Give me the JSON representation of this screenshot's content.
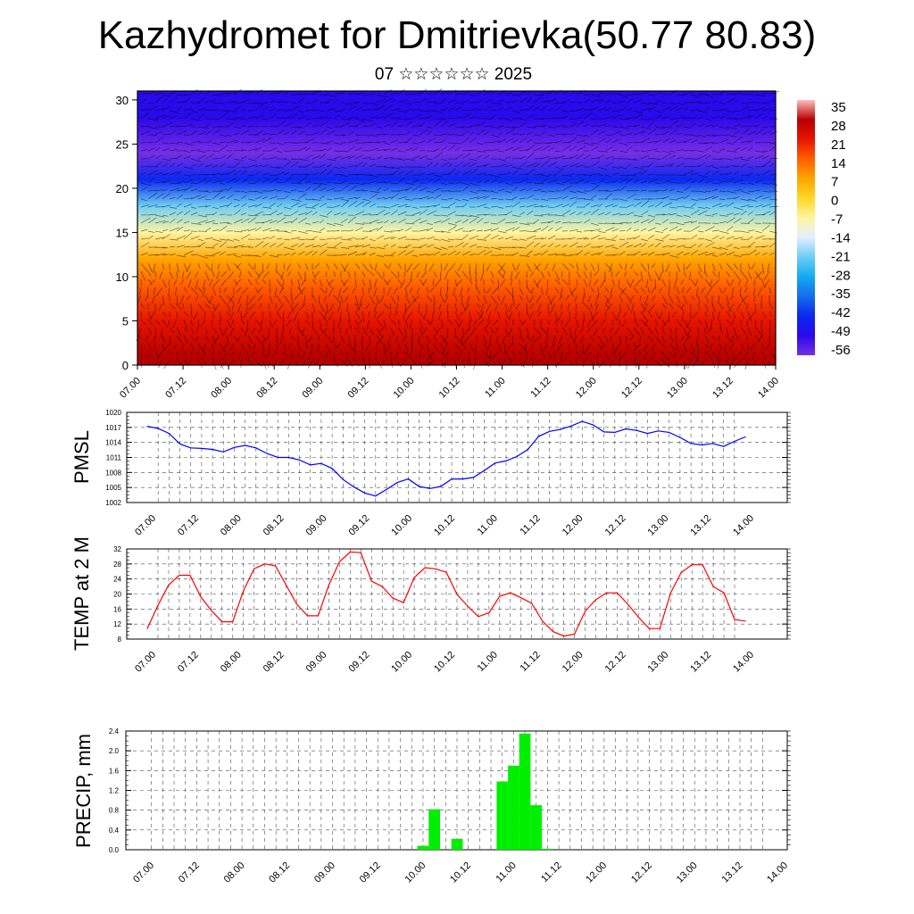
{
  "header": {
    "title": "Kazhydromet for Dmitrievka(50.77 80.83)",
    "subtitle": "07 ☆☆☆☆☆☆ 2025"
  },
  "colors": {
    "pmsl_line": "#0000ff",
    "temp_line": "#ff0000",
    "precip_bar": "#00ee00",
    "colorbar_top": "#ffbbbb",
    "colorbar_bottom": "#7733ee"
  },
  "chart_data": [
    {
      "type": "heatmap",
      "name": "upper-air temperature and wind cross-section",
      "title": "",
      "xlabel": "",
      "ylabel": "",
      "x_tick_labels": [
        "07.00",
        "07.12",
        "08.00",
        "08.12",
        "09.00",
        "09.12",
        "10.00",
        "10.12",
        "11.00",
        "11.12",
        "12.00",
        "12.12",
        "13.00",
        "13.12",
        "14.00"
      ],
      "y_ticks": [
        0,
        5,
        10,
        15,
        20,
        25,
        30
      ],
      "ylim": [
        0,
        31
      ],
      "colorbar_labels": [
        "35",
        "28",
        "21",
        "14",
        "7",
        "0",
        "-7",
        "-14",
        "-21",
        "-28",
        "-35",
        "-42",
        "-49",
        "-56"
      ],
      "layers": [
        {
          "level": 1,
          "value": 28
        },
        {
          "level": 5,
          "value": 21
        },
        {
          "level": 9,
          "value": 14
        },
        {
          "level": 12,
          "value": 7
        },
        {
          "level": 15,
          "value": -7
        },
        {
          "level": 18,
          "value": -21
        },
        {
          "level": 21,
          "value": -42
        },
        {
          "level": 24,
          "value": -56
        },
        {
          "level": 28,
          "value": -49
        },
        {
          "level": 31,
          "value": -49
        }
      ],
      "overlay": "wind barbs"
    },
    {
      "type": "line",
      "name": "pmsl",
      "ylabel": "PMSL",
      "y_ticks": [
        1002,
        1005,
        1008,
        1011,
        1014,
        1017,
        1020
      ],
      "ylim": [
        1002,
        1020
      ],
      "x_tick_labels": [
        "07.00",
        "07.12",
        "08.00",
        "08.12",
        "09.00",
        "09.12",
        "10.00",
        "10.12",
        "11.00",
        "11.12",
        "12.00",
        "12.12",
        "13.00",
        "13.12",
        "14.00"
      ],
      "series": [
        {
          "values": [
            1017.2,
            1016.8,
            1015.8,
            1013.7,
            1012.9,
            1012.8,
            1012.6,
            1012.1,
            1013.0,
            1013.4,
            1012.9,
            1011.8,
            1011.0,
            1011.0,
            1010.5,
            1009.5,
            1009.8,
            1008.8,
            1006.6,
            1005.1,
            1003.9,
            1003.3,
            1004.6,
            1006.0,
            1006.7,
            1005.2,
            1004.8,
            1005.2,
            1006.7,
            1006.7,
            1007.0,
            1008.4,
            1009.9,
            1010.3,
            1011.2,
            1012.6,
            1015.2,
            1016.2,
            1016.6,
            1017.3,
            1018.2,
            1017.5,
            1016.1,
            1016.0,
            1016.7,
            1016.4,
            1015.8,
            1016.3,
            1016.0,
            1015.0,
            1013.8,
            1013.5,
            1013.8,
            1013.2,
            1014.2,
            1015.1
          ]
        }
      ]
    },
    {
      "type": "line",
      "name": "temperature",
      "ylabel": "TEMP at 2 M",
      "y_ticks": [
        8,
        12,
        16,
        20,
        24,
        28,
        32
      ],
      "ylim": [
        8,
        32
      ],
      "x_tick_labels": [
        "07.00",
        "07.12",
        "08.00",
        "08.12",
        "09.00",
        "09.12",
        "10.00",
        "10.12",
        "11.00",
        "11.12",
        "12.00",
        "12.12",
        "13.00",
        "13.12",
        "14.00"
      ],
      "series": [
        {
          "values": [
            10.8,
            17.0,
            22.4,
            25.0,
            25.0,
            19.3,
            15.6,
            12.6,
            12.6,
            20.8,
            26.7,
            28.0,
            27.5,
            22.4,
            17.3,
            14.2,
            14.2,
            22.4,
            28.6,
            31.2,
            31.0,
            23.4,
            22.0,
            18.9,
            17.7,
            24.4,
            27.0,
            26.7,
            25.8,
            19.9,
            16.8,
            14.0,
            15.0,
            19.4,
            20.3,
            19.0,
            17.5,
            12.8,
            10.0,
            8.8,
            9.3,
            15.4,
            18.5,
            20.3,
            20.3,
            17.3,
            13.8,
            10.8,
            10.8,
            20.3,
            25.7,
            27.8,
            27.8,
            22.0,
            20.3,
            13.2,
            12.8
          ]
        }
      ]
    },
    {
      "type": "bar",
      "name": "precipitation",
      "ylabel": "PRECIP, mm",
      "y_ticks": [
        "0.0",
        "0.4",
        "0.8",
        "1.2",
        "1.6",
        "2.0",
        "2.4"
      ],
      "ylim": [
        0,
        2.4
      ],
      "x_tick_labels": [
        "07.00",
        "07.12",
        "08.00",
        "08.12",
        "09.00",
        "09.12",
        "10.00",
        "10.12",
        "11.00",
        "11.12",
        "12.00",
        "12.12",
        "13.00",
        "13.12",
        "14.00"
      ],
      "values": [
        0,
        0,
        0,
        0,
        0,
        0,
        0,
        0,
        0,
        0,
        0,
        0,
        0,
        0,
        0,
        0,
        0,
        0,
        0,
        0,
        0,
        0,
        0,
        0,
        0,
        0.08,
        0.82,
        0,
        0.22,
        0,
        0,
        0,
        1.38,
        1.7,
        2.35,
        0.9,
        0.02,
        0,
        0,
        0,
        0,
        0,
        0,
        0,
        0,
        0,
        0,
        0,
        0,
        0,
        0,
        0,
        0,
        0,
        0,
        0,
        0
      ]
    }
  ]
}
